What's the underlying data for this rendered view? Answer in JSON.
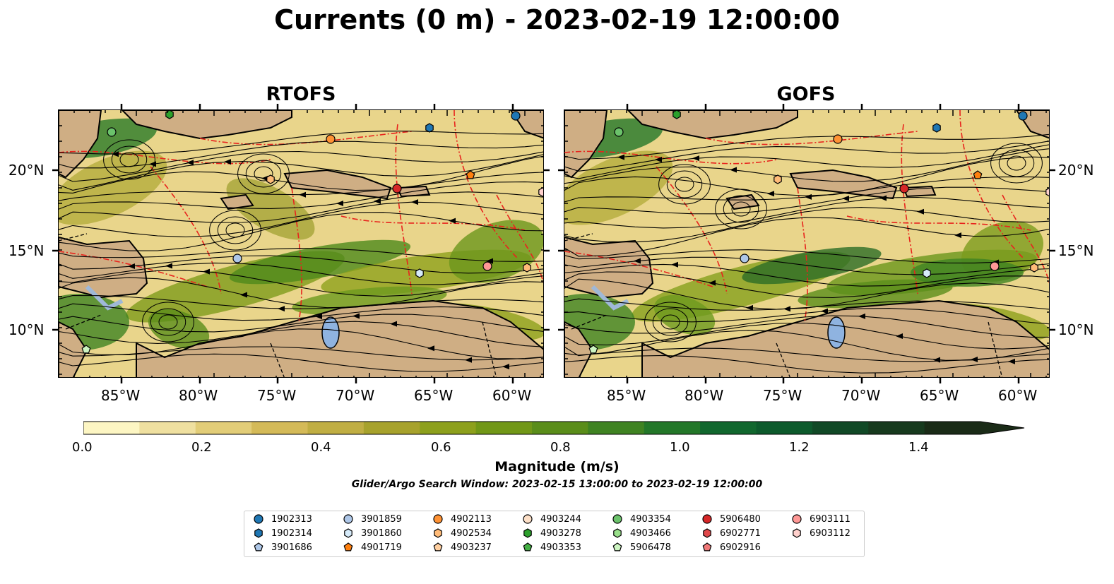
{
  "title": "Currents (0 m) - 2023-02-19 12:00:00",
  "panels": [
    {
      "title": "RTOFS"
    },
    {
      "title": "GOFS"
    }
  ],
  "axes": {
    "x_ticks": [
      "85°W",
      "80°W",
      "75°W",
      "70°W",
      "65°W",
      "60°W"
    ],
    "y_ticks": [
      "20°N",
      "15°N",
      "10°N"
    ]
  },
  "colorbar": {
    "label": "Magnitude (m/s)",
    "ticks": [
      "0.0",
      "0.2",
      "0.4",
      "0.6",
      "0.8",
      "1.0",
      "1.2",
      "1.4"
    ],
    "colors": [
      "#fdf6c3",
      "#efe0a0",
      "#e2cd78",
      "#d4ba58",
      "#c0ae43",
      "#a7a22c",
      "#8da01c",
      "#719717",
      "#5a8d1a",
      "#3f8322",
      "#237729",
      "#11672e",
      "#0d5a2c",
      "#114926",
      "#173a1e",
      "#1a2b17"
    ]
  },
  "subtitle": "Glider/Argo Search Window: 2023-02-15 13:00:00 to 2023-02-19 12:00:00",
  "legend": [
    {
      "id": "1902313",
      "color": "#1f77b4",
      "marker": "circle"
    },
    {
      "id": "1902314",
      "color": "#1f77b4",
      "marker": "hexagon"
    },
    {
      "id": "3901686",
      "color": "#aec7e8",
      "marker": "pentagon"
    },
    {
      "id": "3901859",
      "color": "#aec7e8",
      "marker": "circle"
    },
    {
      "id": "3901860",
      "color": "#d6ebfa",
      "marker": "hexagon"
    },
    {
      "id": "4901719",
      "color": "#ff7f0e",
      "marker": "pentagon"
    },
    {
      "id": "4902113",
      "color": "#ff9234",
      "marker": "circle"
    },
    {
      "id": "4902534",
      "color": "#ffbb78",
      "marker": "hexagon"
    },
    {
      "id": "4903237",
      "color": "#ffcfa0",
      "marker": "pentagon"
    },
    {
      "id": "4903244",
      "color": "#fde0c8",
      "marker": "circle"
    },
    {
      "id": "4903278",
      "color": "#2ca02c",
      "marker": "hexagon"
    },
    {
      "id": "4903353",
      "color": "#45b045",
      "marker": "pentagon"
    },
    {
      "id": "4903354",
      "color": "#6bc26b",
      "marker": "circle"
    },
    {
      "id": "4903466",
      "color": "#98df8a",
      "marker": "hexagon"
    },
    {
      "id": "5906478",
      "color": "#cdf5c2",
      "marker": "pentagon"
    },
    {
      "id": "5906480",
      "color": "#d62728",
      "marker": "circle"
    },
    {
      "id": "6902771",
      "color": "#e0484a",
      "marker": "hexagon"
    },
    {
      "id": "6902916",
      "color": "#f07878",
      "marker": "pentagon"
    },
    {
      "id": "6903111",
      "color": "#ff9896",
      "marker": "circle"
    },
    {
      "id": "6903112",
      "color": "#ffd0cc",
      "marker": "hexagon"
    }
  ]
}
